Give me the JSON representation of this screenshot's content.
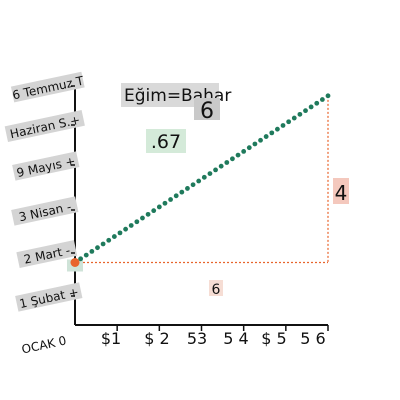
{
  "chart_data": {
    "type": "line",
    "title": "Eğim=Bahar",
    "x_tick_labels": [
      "$1",
      "$ 2",
      "53",
      "5 4",
      "$ 5",
      "5 6"
    ],
    "y_tick_labels": [
      "OCAK 0",
      "1 Şubat +",
      "2 Mart -",
      "3 Nisan -",
      "9 Mayıs +",
      "Haziran S.+",
      "6 Temmuz T"
    ],
    "xlim": [
      0,
      6
    ],
    "ylim": [
      0,
      6
    ],
    "series": [
      {
        "style": "dotted",
        "color": "#1f7a5c",
        "x": [
          0,
          6
        ],
        "y": [
          1.5,
          5.5
        ]
      }
    ],
    "start_marker_color": "#e8642c",
    "grid": false
  },
  "annotations": {
    "title_fraction_numerator": "6",
    "slope_decimal": ".67",
    "rise_label": "4",
    "run_label": "6",
    "triangle_color": "#e8642c"
  }
}
